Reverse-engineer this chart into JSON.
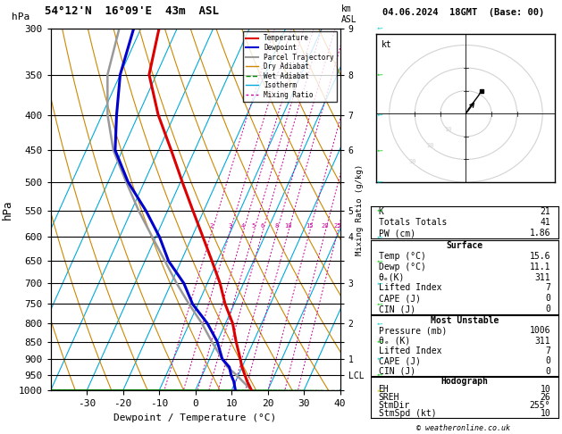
{
  "title_left": "54°12'N  16°09'E  43m  ASL",
  "title_right": "04.06.2024  18GMT  (Base: 00)",
  "xlabel": "Dewpoint / Temperature (°C)",
  "ylabel_left": "hPa",
  "pmin": 300,
  "pmax": 1000,
  "tmin": -40,
  "tmax": 40,
  "skew": 45.0,
  "pressure_levels": [
    300,
    350,
    400,
    450,
    500,
    550,
    600,
    650,
    700,
    750,
    800,
    850,
    900,
    950,
    1000
  ],
  "temp_ticks": [
    -30,
    -20,
    -10,
    0,
    10,
    20,
    30,
    40
  ],
  "temp_profile_p": [
    1000,
    970,
    950,
    925,
    900,
    850,
    800,
    750,
    700,
    650,
    600,
    550,
    500,
    450,
    400,
    350,
    300
  ],
  "temp_profile_t": [
    15.6,
    13.2,
    11.8,
    10.0,
    8.5,
    5.2,
    2.0,
    -2.5,
    -6.5,
    -11.5,
    -17.0,
    -23.0,
    -29.5,
    -36.5,
    -44.5,
    -52.0,
    -55.0
  ],
  "dewp_profile_p": [
    1000,
    970,
    950,
    925,
    900,
    850,
    800,
    750,
    700,
    650,
    600,
    550,
    500,
    450,
    400,
    350,
    300
  ],
  "dewp_profile_t": [
    11.1,
    9.5,
    8.0,
    6.5,
    3.5,
    0.0,
    -5.0,
    -11.5,
    -16.5,
    -23.5,
    -29.0,
    -36.0,
    -44.5,
    -52.0,
    -56.0,
    -60.0,
    -62.0
  ],
  "parcel_profile_p": [
    1000,
    950,
    925,
    900,
    850,
    800,
    750,
    700,
    650,
    600,
    550,
    500,
    450,
    400,
    350,
    300
  ],
  "parcel_profile_t": [
    15.6,
    9.5,
    6.0,
    3.5,
    -1.5,
    -6.5,
    -12.5,
    -18.5,
    -24.5,
    -31.0,
    -38.0,
    -45.0,
    -52.5,
    -58.5,
    -63.5,
    -66.0
  ],
  "temp_color": "#dd0000",
  "dewp_color": "#0000cc",
  "parcel_color": "#999999",
  "dry_adiabat_color": "#cc8800",
  "wet_adiabat_color": "#008800",
  "isotherm_color": "#00aadd",
  "mixing_ratio_color": "#cc0099",
  "km_labels": [
    [
      300,
      "9"
    ],
    [
      350,
      "8"
    ],
    [
      400,
      "7"
    ],
    [
      450,
      "6"
    ],
    [
      500,
      ""
    ],
    [
      550,
      "5"
    ],
    [
      600,
      "4"
    ],
    [
      650,
      ""
    ],
    [
      700,
      "3"
    ],
    [
      750,
      ""
    ],
    [
      800,
      "2"
    ],
    [
      850,
      ""
    ],
    [
      900,
      "1"
    ],
    [
      950,
      "LCL"
    ],
    [
      1000,
      ""
    ]
  ],
  "mixing_ratio_values": [
    2,
    3,
    4,
    5,
    6,
    8,
    10,
    15,
    20,
    25
  ],
  "stats_K": 21,
  "stats_TT": 41,
  "stats_PW": "1.86",
  "stats_surf_temp": "15.6",
  "stats_surf_dewp": "11.1",
  "stats_surf_theta_e": "311",
  "stats_surf_LI": "7",
  "stats_surf_CAPE": "0",
  "stats_surf_CIN": "0",
  "stats_mu_press": "1006",
  "stats_mu_theta_e": "311",
  "stats_mu_LI": "7",
  "stats_mu_CAPE": "0",
  "stats_mu_CIN": "0",
  "stats_hodo_EH": "10",
  "stats_hodo_SREH": "26",
  "stats_hodo_StmDir": "255°",
  "stats_hodo_StmSpd": "10",
  "copyright": "© weatheronline.co.uk",
  "wind_arrow_pressures": [
    300,
    350,
    400,
    450,
    500,
    550,
    600,
    650,
    700,
    750,
    800,
    850,
    900,
    950,
    1000
  ],
  "wind_arrow_colors": [
    "#00cccc",
    "#00cc00",
    "#00cccc",
    "#00cc00",
    "#00cccc",
    "#00cc00",
    "#00cccc",
    "#00cc00",
    "#00cccc",
    "#00cc00",
    "#00cccc",
    "#00cc00",
    "#00cccc",
    "#00cc00",
    "#cccc00"
  ]
}
